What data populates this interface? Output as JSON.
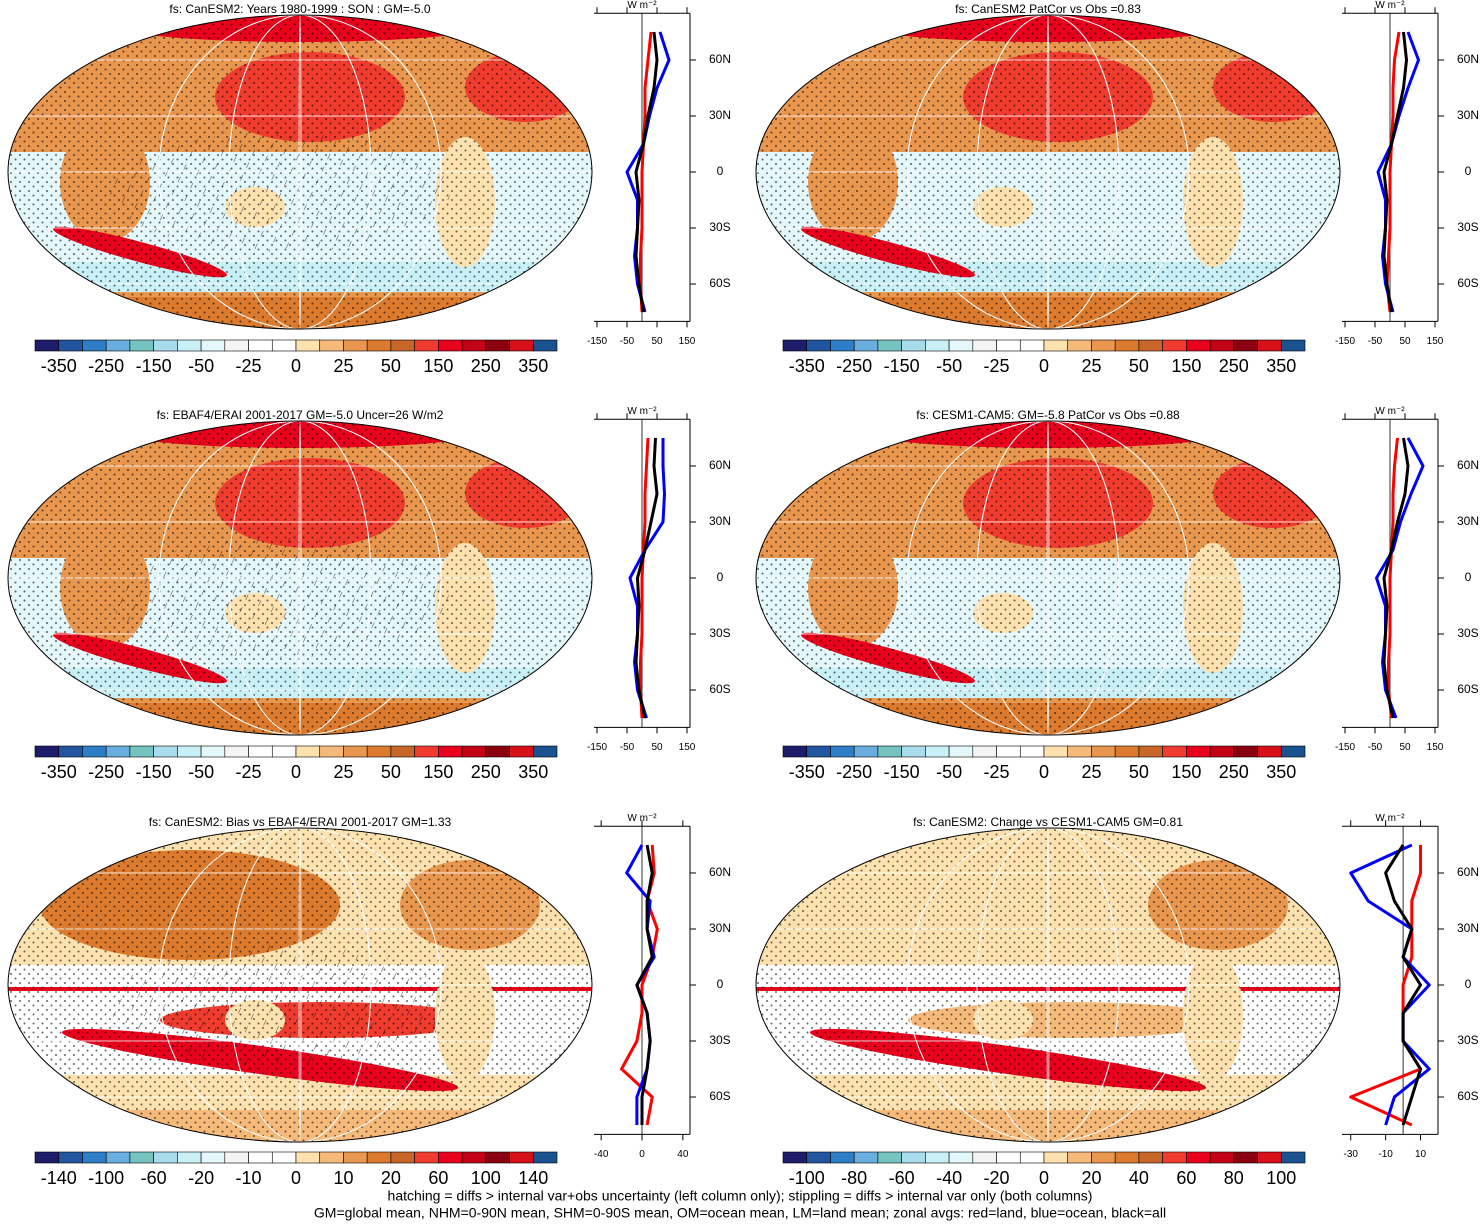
{
  "colorbar_colors": [
    "#1d1d6b",
    "#2255a0",
    "#2f7ec8",
    "#6aaee0",
    "#76c4c0",
    "#a8dcec",
    "#c9f0f6",
    "#e4f7fa",
    "#f4f4f4",
    "#ffffff",
    "#ffffff",
    "#fde2b0",
    "#f5b97a",
    "#e9974e",
    "#dc7a2d",
    "#c8662a",
    "#f03c2e",
    "#e8001c",
    "#c40016",
    "#8a0010",
    "#d8101a",
    "#1a5290"
  ],
  "chart_data": [
    {
      "type": "map",
      "title": "fs: CanESM2: Years 1980-1999 : SON : GM=-5.0",
      "colorbar_labels": [
        "-350",
        "-250",
        "-150",
        "-50",
        "-25",
        "0",
        "25",
        "50",
        "150",
        "250",
        "350"
      ],
      "zonal": {
        "unit": "W m⁻²",
        "xlim": [
          -160,
          160
        ],
        "xticks": [
          -150,
          -50,
          50,
          150
        ],
        "ylim": [
          -80,
          85
        ],
        "yticks": [
          {
            "value": 60,
            "label": "60N"
          },
          {
            "value": 30,
            "label": "30N"
          },
          0,
          {
            "value": -30,
            "label": "30S"
          },
          {
            "value": -60,
            "label": "60S"
          }
        ],
        "y": [
          -75,
          -60,
          -45,
          -30,
          -15,
          0,
          15,
          30,
          45,
          60,
          75
        ],
        "series": [
          {
            "color": "#ff0000",
            "values": [
              0,
              -5,
              -5,
              0,
              0,
              0,
              5,
              10,
              10,
              20,
              30
            ]
          },
          {
            "color": "#0000ff",
            "values": [
              10,
              -15,
              -25,
              -15,
              -15,
              -50,
              5,
              25,
              50,
              90,
              60
            ]
          },
          {
            "color": "#000000",
            "values": [
              5,
              -10,
              -20,
              -15,
              -10,
              -20,
              5,
              20,
              40,
              50,
              40
            ]
          }
        ]
      }
    },
    {
      "type": "map",
      "title": "fs: CanESM2 PatCor vs Obs =0.83",
      "colorbar_labels": [
        "-350",
        "-250",
        "-150",
        "-50",
        "-25",
        "0",
        "25",
        "50",
        "150",
        "250",
        "350"
      ],
      "zonal": {
        "unit": "W m⁻²",
        "xlim": [
          -160,
          160
        ],
        "xticks": [
          -150,
          -50,
          50,
          150
        ],
        "ylim": [
          -80,
          85
        ],
        "yticks": [
          {
            "value": 60,
            "label": "60N"
          },
          {
            "value": 30,
            "label": "30N"
          },
          0,
          {
            "value": -30,
            "label": "30S"
          },
          {
            "value": -60,
            "label": "60S"
          }
        ],
        "y": [
          -75,
          -60,
          -45,
          -30,
          -15,
          0,
          15,
          30,
          45,
          60,
          75
        ],
        "series": [
          {
            "color": "#ff0000",
            "values": [
              0,
              -10,
              -5,
              0,
              0,
              0,
              5,
              10,
              10,
              15,
              30
            ]
          },
          {
            "color": "#0000ff",
            "values": [
              10,
              -15,
              -25,
              -15,
              -15,
              -40,
              5,
              30,
              60,
              95,
              60
            ]
          },
          {
            "color": "#000000",
            "values": [
              5,
              -10,
              -20,
              -15,
              -10,
              -20,
              5,
              25,
              45,
              55,
              45
            ]
          }
        ]
      }
    },
    {
      "type": "map",
      "title": "fs: EBAF4/ERAI 2001-2017 GM=-5.0 Uncer=26 W/m2",
      "colorbar_labels": [
        "-350",
        "-250",
        "-150",
        "-50",
        "-25",
        "0",
        "25",
        "50",
        "150",
        "250",
        "350"
      ],
      "zonal": {
        "unit": "W m⁻²",
        "xlim": [
          -160,
          160
        ],
        "xticks": [
          -150,
          -50,
          50,
          150
        ],
        "ylim": [
          -80,
          85
        ],
        "yticks": [
          {
            "value": 60,
            "label": "60N"
          },
          {
            "value": 30,
            "label": "30N"
          },
          0,
          {
            "value": -30,
            "label": "30S"
          },
          {
            "value": -60,
            "label": "60S"
          }
        ],
        "y": [
          -75,
          -60,
          -45,
          -30,
          -15,
          0,
          15,
          30,
          45,
          60,
          75
        ],
        "series": [
          {
            "color": "#ff0000",
            "values": [
              0,
              -5,
              -5,
              0,
              0,
              0,
              5,
              10,
              10,
              15,
              20
            ]
          },
          {
            "color": "#0000ff",
            "values": [
              15,
              -15,
              -25,
              -15,
              -15,
              -40,
              10,
              70,
              75,
              70,
              70
            ]
          },
          {
            "color": "#000000",
            "values": [
              10,
              -10,
              -20,
              -15,
              -10,
              -15,
              10,
              30,
              50,
              40,
              45
            ]
          }
        ]
      }
    },
    {
      "type": "map",
      "title": "fs: CESM1-CAM5: GM=-5.8 PatCor vs Obs =0.88",
      "colorbar_labels": [
        "-350",
        "-250",
        "-150",
        "-50",
        "-25",
        "0",
        "25",
        "50",
        "150",
        "250",
        "350"
      ],
      "zonal": {
        "unit": "W m⁻²",
        "xlim": [
          -160,
          160
        ],
        "xticks": [
          -150,
          -50,
          50,
          150
        ],
        "ylim": [
          -80,
          85
        ],
        "yticks": [
          {
            "value": 60,
            "label": "60N"
          },
          {
            "value": 30,
            "label": "30N"
          },
          0,
          {
            "value": -30,
            "label": "30S"
          },
          {
            "value": -60,
            "label": "60S"
          }
        ],
        "y": [
          -75,
          -60,
          -45,
          -30,
          -15,
          0,
          15,
          30,
          45,
          60,
          75
        ],
        "series": [
          {
            "color": "#ff0000",
            "values": [
              5,
              -5,
              -5,
              0,
              0,
              0,
              5,
              10,
              10,
              15,
              25
            ]
          },
          {
            "color": "#0000ff",
            "values": [
              20,
              -15,
              -25,
              -15,
              -15,
              -45,
              10,
              35,
              70,
              110,
              60
            ]
          },
          {
            "color": "#000000",
            "values": [
              10,
              -10,
              -20,
              -15,
              -10,
              -20,
              5,
              25,
              50,
              60,
              45
            ]
          }
        ]
      }
    },
    {
      "type": "map",
      "title": "fs: CanESM2: Bias vs EBAF4/ERAI 2001-2017  GM=1.33",
      "colorbar_labels": [
        "-140",
        "-100",
        "-60",
        "-20",
        "-10",
        "0",
        "10",
        "20",
        "60",
        "100",
        "140"
      ],
      "zonal": {
        "unit": "W m⁻²",
        "xlim": [
          -47,
          47
        ],
        "xticks": [
          -40,
          0,
          40
        ],
        "ylim": [
          -80,
          85
        ],
        "yticks": [
          {
            "value": 60,
            "label": "60N"
          },
          {
            "value": 30,
            "label": "30N"
          },
          0,
          {
            "value": -30,
            "label": "30S"
          },
          {
            "value": -60,
            "label": "60S"
          }
        ],
        "y": [
          -75,
          -60,
          -45,
          -30,
          -15,
          0,
          15,
          30,
          45,
          60,
          75
        ],
        "series": [
          {
            "color": "#ff0000",
            "values": [
              5,
              10,
              -20,
              -5,
              0,
              0,
              10,
              15,
              5,
              12,
              10
            ]
          },
          {
            "color": "#0000ff",
            "values": [
              -5,
              -5,
              5,
              8,
              5,
              -5,
              12,
              5,
              8,
              -15,
              0
            ]
          },
          {
            "color": "#000000",
            "values": [
              0,
              0,
              5,
              8,
              5,
              -5,
              10,
              5,
              5,
              10,
              5
            ]
          }
        ]
      }
    },
    {
      "type": "map",
      "title": "fs: CanESM2: Change vs CESM1-CAM5 GM=0.81",
      "colorbar_labels": [
        "-100",
        "-80",
        "-60",
        "-40",
        "-20",
        "0",
        "20",
        "40",
        "60",
        "80",
        "100"
      ],
      "zonal": {
        "unit": "W m⁻²",
        "xlim": [
          -35,
          20
        ],
        "xticks": [
          -30,
          -10,
          10
        ],
        "ylim": [
          -80,
          85
        ],
        "yticks": [
          {
            "value": 60,
            "label": "60N"
          },
          {
            "value": 30,
            "label": "30N"
          },
          0,
          {
            "value": -30,
            "label": "30S"
          },
          {
            "value": -60,
            "label": "60S"
          }
        ],
        "y": [
          -75,
          -60,
          -45,
          -30,
          -15,
          0,
          15,
          30,
          45,
          60,
          75
        ],
        "series": [
          {
            "color": "#ff0000",
            "values": [
              5,
              -30,
              10,
              0,
              0,
              0,
              5,
              5,
              5,
              10,
              10
            ]
          },
          {
            "color": "#0000ff",
            "values": [
              -10,
              -5,
              15,
              0,
              0,
              15,
              0,
              5,
              -20,
              -30,
              5
            ]
          },
          {
            "color": "#000000",
            "values": [
              0,
              5,
              10,
              0,
              0,
              10,
              0,
              5,
              -5,
              -10,
              0
            ]
          }
        ]
      }
    }
  ],
  "footnote": [
    "hatching = diffs > internal var+obs uncertainty (left column only); stippling = diffs > internal var only (both columns)",
    "GM=global mean, NHM=0-90N mean, SHM=0-90S mean, OM=ocean mean, LM=land mean; zonal avgs: red=land, blue=ocean, black=all"
  ]
}
